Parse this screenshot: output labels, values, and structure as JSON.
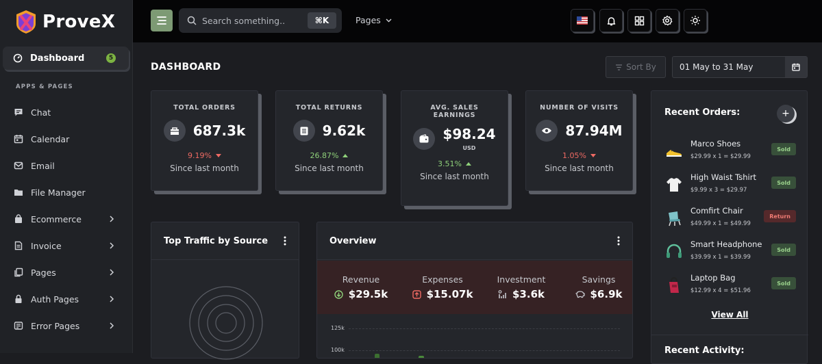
{
  "brand": {
    "name": "ProveX"
  },
  "sidebar": {
    "active": {
      "label": "Dashboard",
      "badge": "5"
    },
    "section_title": "APPS & PAGES",
    "items": [
      {
        "label": "Chat",
        "icon": "chat-icon",
        "has_submenu": false
      },
      {
        "label": "Calendar",
        "icon": "calendar-icon",
        "has_submenu": false
      },
      {
        "label": "Email",
        "icon": "email-icon",
        "has_submenu": false
      },
      {
        "label": "File Manager",
        "icon": "folder-icon",
        "has_submenu": false
      },
      {
        "label": "Ecommerce",
        "icon": "shopping-bag-icon",
        "has_submenu": true
      },
      {
        "label": "Invoice",
        "icon": "invoice-icon",
        "has_submenu": true
      },
      {
        "label": "Pages",
        "icon": "pages-icon",
        "has_submenu": true
      },
      {
        "label": "Auth Pages",
        "icon": "lock-icon",
        "has_submenu": true
      },
      {
        "label": "Error Pages",
        "icon": "error-icon",
        "has_submenu": true
      }
    ]
  },
  "topbar": {
    "search_placeholder": "Search something..",
    "shortcut": "⌘K",
    "pages_label": "Pages",
    "buttons": [
      "flag-us-icon",
      "bell-icon",
      "grid-icon",
      "gear-icon",
      "sun-icon"
    ]
  },
  "header": {
    "title": "DASHBOARD",
    "sort_label": "Sort By",
    "date_range": "01 May to 31 May"
  },
  "stats": [
    {
      "title": "TOTAL ORDERS",
      "value": "687.3k",
      "sub": "",
      "change": "9.19%",
      "trend": "down",
      "since": "Since last month",
      "icon": "box-icon"
    },
    {
      "title": "TOTAL RETURNS",
      "value": "9.62k",
      "sub": "",
      "change": "26.87%",
      "trend": "up",
      "since": "Since last month",
      "icon": "receipt-icon"
    },
    {
      "title": "AVG. SALES EARNINGS",
      "value": "$98.24",
      "sub": "USD",
      "change": "3.51%",
      "trend": "up",
      "since": "Since last month",
      "icon": "wallet-icon"
    },
    {
      "title": "NUMBER OF VISITS",
      "value": "87.94M",
      "sub": "",
      "change": "1.05%",
      "trend": "down",
      "since": "Since last month",
      "icon": "eye-icon"
    }
  ],
  "traffic": {
    "title": "Top Traffic by Source"
  },
  "overview": {
    "title": "Overview",
    "items": [
      {
        "label": "Revenue",
        "value": "$29.5k",
        "icon": "arrow-down-circle-icon",
        "color": "#8fd17a"
      },
      {
        "label": "Expenses",
        "value": "$15.07k",
        "icon": "arrow-up-square-icon",
        "color": "#ef6a63"
      },
      {
        "label": "Investment",
        "value": "$3.6k",
        "icon": "chart-bars-icon",
        "color": "#c6c8cd"
      },
      {
        "label": "Savings",
        "value": "$6.9k",
        "icon": "piggy-bank-icon",
        "color": "#c6c8cd"
      }
    ],
    "y_ticks": [
      "125k",
      "100k"
    ]
  },
  "recent_orders": {
    "title": "Recent Orders:",
    "items": [
      {
        "name": "Marco Shoes",
        "price": "$29.99 x 1 = $29.99",
        "status": "Sold",
        "icon": "shoe-icon"
      },
      {
        "name": "High Waist Tshirt",
        "price": "$9.99 x 3 = $29.97",
        "status": "Sold",
        "icon": "tshirt-icon"
      },
      {
        "name": "Comfirt Chair",
        "price": "$49.99 x 1 = $49.99",
        "status": "Return",
        "icon": "chair-icon"
      },
      {
        "name": "Smart Headphone",
        "price": "$39.99 x 1 = $39.99",
        "status": "Sold",
        "icon": "headphone-icon"
      },
      {
        "name": "Laptop Bag",
        "price": "$12.99 x 4 = $51.96",
        "status": "Sold",
        "icon": "bag-icon"
      }
    ],
    "view_all": "View All"
  },
  "recent_activity": {
    "title": "Recent Activity:"
  },
  "colors": {
    "accent": "#7d9a74",
    "success": "#8fd17a",
    "danger": "#ef6a63"
  }
}
